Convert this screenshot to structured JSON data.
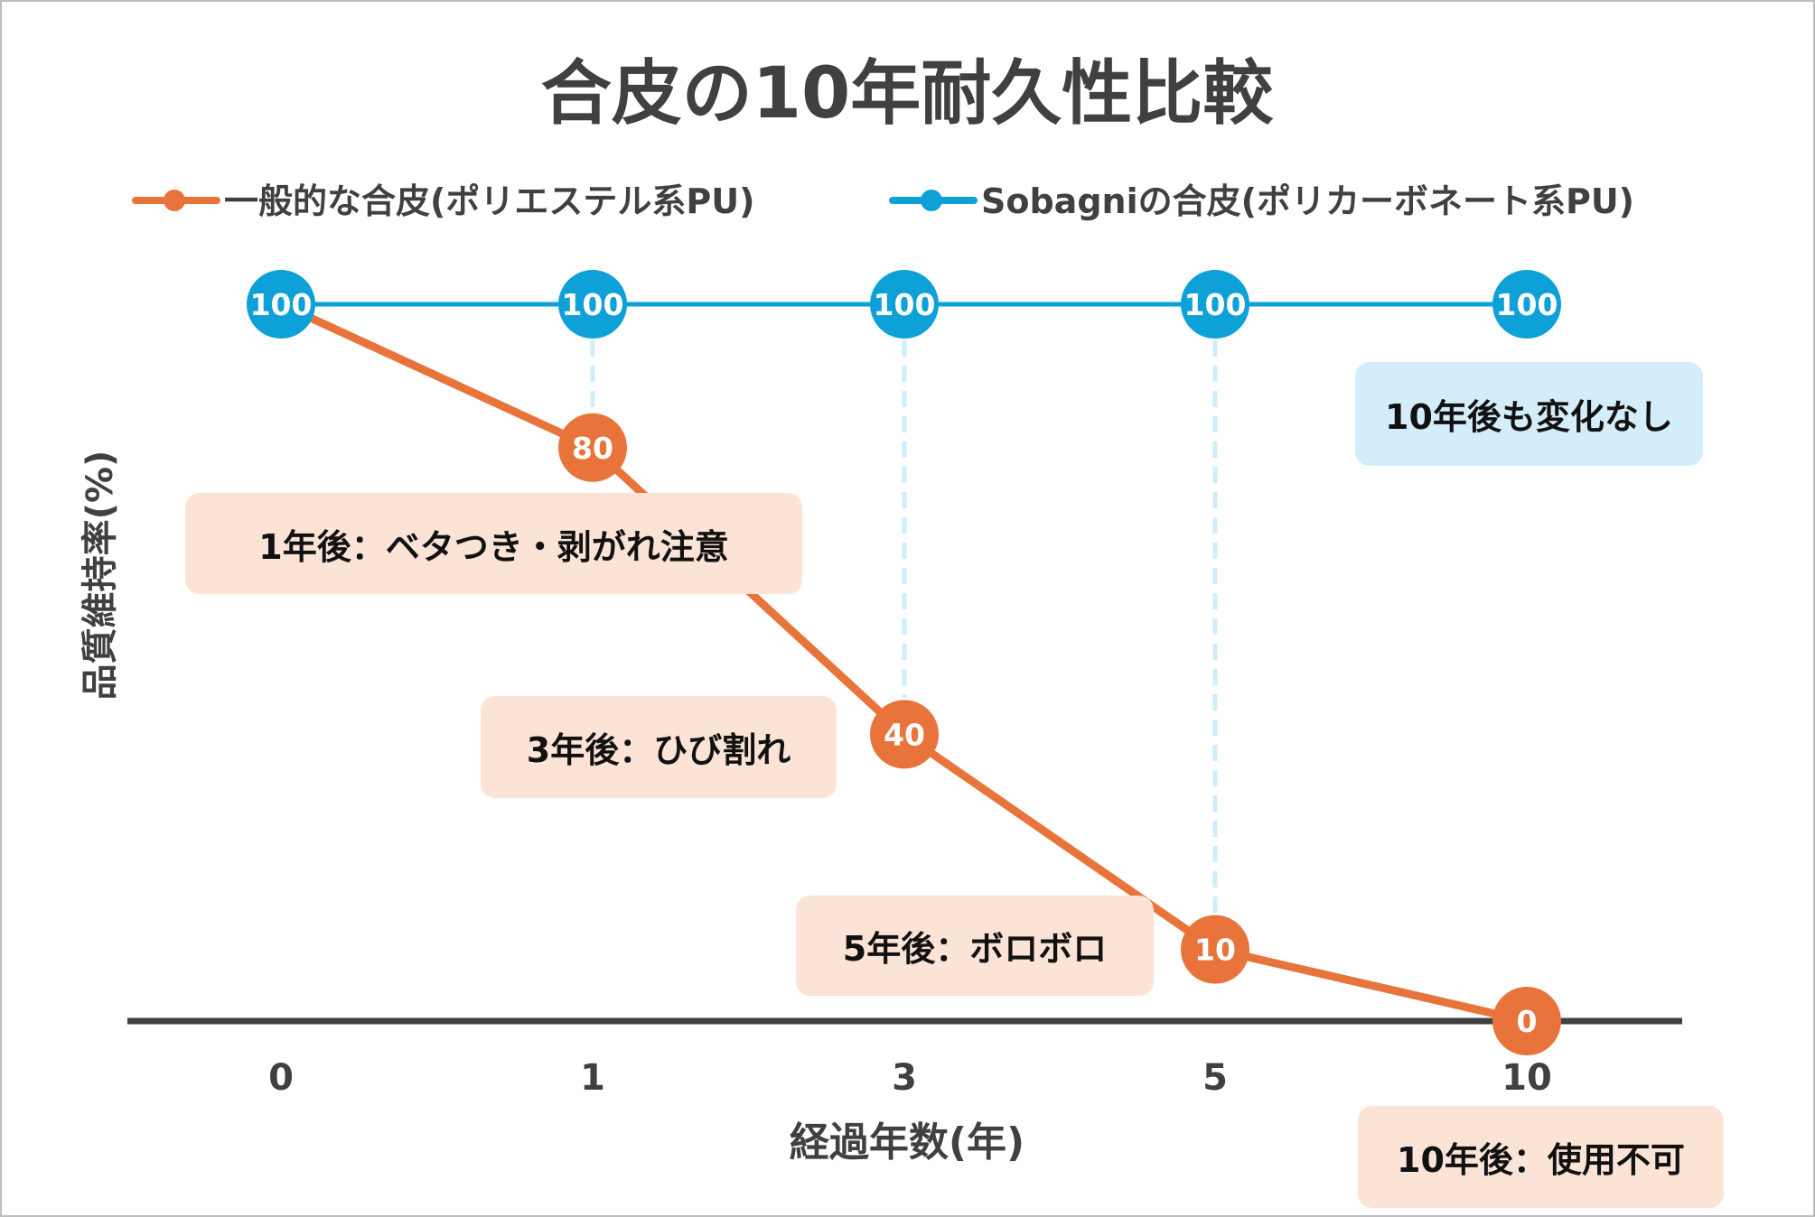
{
  "chart_data": {
    "type": "line",
    "title": "合皮の10年耐久性比較",
    "xlabel": "経過年数(年)",
    "ylabel": "品質維持率(%)",
    "categories": [
      "0",
      "1",
      "3",
      "5",
      "10"
    ],
    "ylim": [
      0,
      100
    ],
    "grid": false,
    "legend_position": "top",
    "series": [
      {
        "name": "一般的な合皮(ポリエステル系PU)",
        "color": "#e8743b",
        "values": [
          100,
          80,
          40,
          10,
          0
        ]
      },
      {
        "name": "Sobagniの合皮(ポリカーボネート系PU)",
        "color": "#0ea1d8",
        "values": [
          100,
          100,
          100,
          100,
          100
        ]
      }
    ],
    "annotations": [
      {
        "text": "1年後：ベタつき・剥がれ注意",
        "color": "#fbe3d6"
      },
      {
        "text": "3年後：ひび割れ",
        "color": "#fbe3d6"
      },
      {
        "text": "5年後：ボロボロ",
        "color": "#fbe3d6"
      },
      {
        "text": "10年後：使用不可",
        "color": "#fbe3d6"
      },
      {
        "text": "10年後も変化なし",
        "color": "#d3eefa"
      }
    ]
  }
}
